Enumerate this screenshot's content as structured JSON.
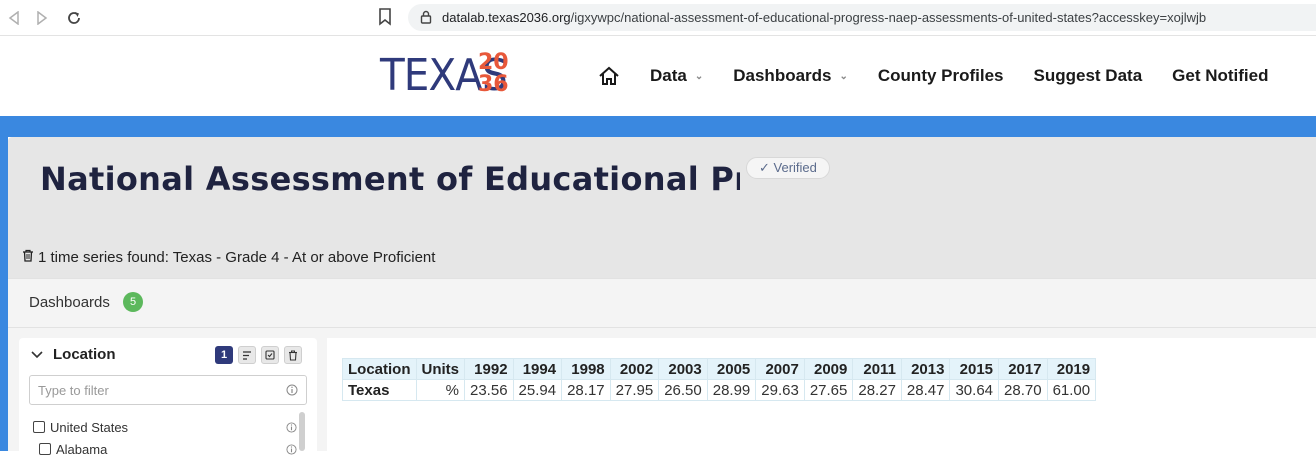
{
  "browser": {
    "url_host": "datalab.texas2036.org",
    "url_path": "/igxywpc/national-assessment-of-educational-progress-naep-assessments-of-united-states?accesskey=xojlwjb"
  },
  "site": {
    "logo_text": "TEXAS",
    "logo_year_top": "20",
    "logo_year_bottom": "36",
    "nav": [
      "Data",
      "Dashboards",
      "County Profiles",
      "Suggest Data",
      "Get Notified"
    ]
  },
  "page": {
    "title": "National Assessment of Educational Progr",
    "verified_label": "✓ Verified",
    "series_found": "1 time series found: Texas - Grade 4 - At or above Proficient"
  },
  "dashboards": {
    "label": "Dashboards",
    "count": "5"
  },
  "sidebar": {
    "heading": "Location",
    "selected_count": "1",
    "filter_placeholder": "Type to filter",
    "items": [
      "United States",
      "Alabama"
    ]
  },
  "table": {
    "headers": [
      "Location",
      "Units",
      "1992",
      "1994",
      "1998",
      "2002",
      "2003",
      "2005",
      "2007",
      "2009",
      "2011",
      "2013",
      "2015",
      "2017",
      "2019"
    ],
    "rows": [
      [
        "Texas",
        "%",
        "23.56",
        "25.94",
        "28.17",
        "27.95",
        "26.50",
        "28.99",
        "29.63",
        "27.65",
        "28.27",
        "28.47",
        "30.64",
        "28.70",
        "61.00"
      ]
    ]
  },
  "colors": {
    "brand_navy": "#2f3a7b",
    "brand_orange": "#e8583a",
    "band_blue": "#3a88e0",
    "badge_green": "#5cb85c"
  }
}
